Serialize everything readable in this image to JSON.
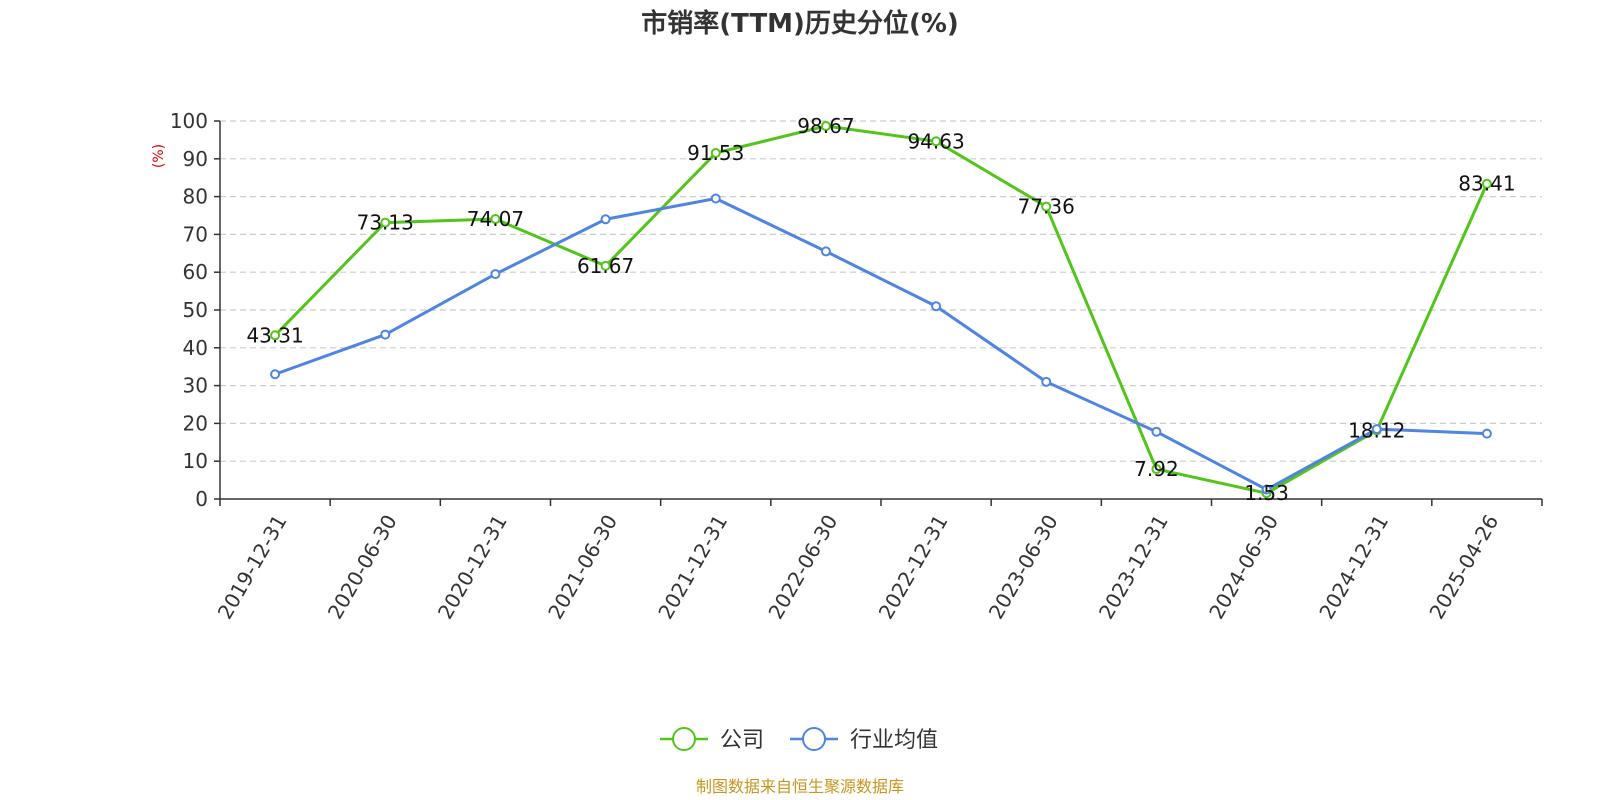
{
  "chart_data": {
    "type": "line",
    "title": "市销率(TTM)历史分位(%)",
    "ylabel": "(%)",
    "ylim": [
      0,
      100
    ],
    "yticks": [
      0,
      10,
      20,
      30,
      40,
      50,
      60,
      70,
      80,
      90,
      100
    ],
    "grid": true,
    "categories": [
      "2019-12-31",
      "2020-06-30",
      "2020-12-31",
      "2021-06-30",
      "2021-12-31",
      "2022-06-30",
      "2022-12-31",
      "2023-06-30",
      "2023-12-31",
      "2024-06-30",
      "2024-12-31",
      "2025-04-26"
    ],
    "series": [
      {
        "name": "公司",
        "color": "#52c41a",
        "values": [
          43.31,
          73.13,
          74.07,
          61.67,
          91.53,
          98.67,
          94.63,
          77.36,
          7.92,
          1.53,
          18.12,
          83.41
        ],
        "data_labels": [
          "43.31",
          "73.13",
          "74.07",
          "61.67",
          "91.53",
          "98.67",
          "94.63",
          "77.36",
          "7.92",
          "1.53",
          "18.12",
          "83.41"
        ]
      },
      {
        "name": "行业均值",
        "color": "#4f84e0",
        "values": [
          33,
          43.5,
          59.5,
          74,
          79.5,
          65.5,
          51,
          31,
          17.8,
          2.5,
          18.5,
          17.3
        ]
      }
    ],
    "legend_position": "bottom-center",
    "source": "制图数据来自恒生聚源数据库"
  }
}
